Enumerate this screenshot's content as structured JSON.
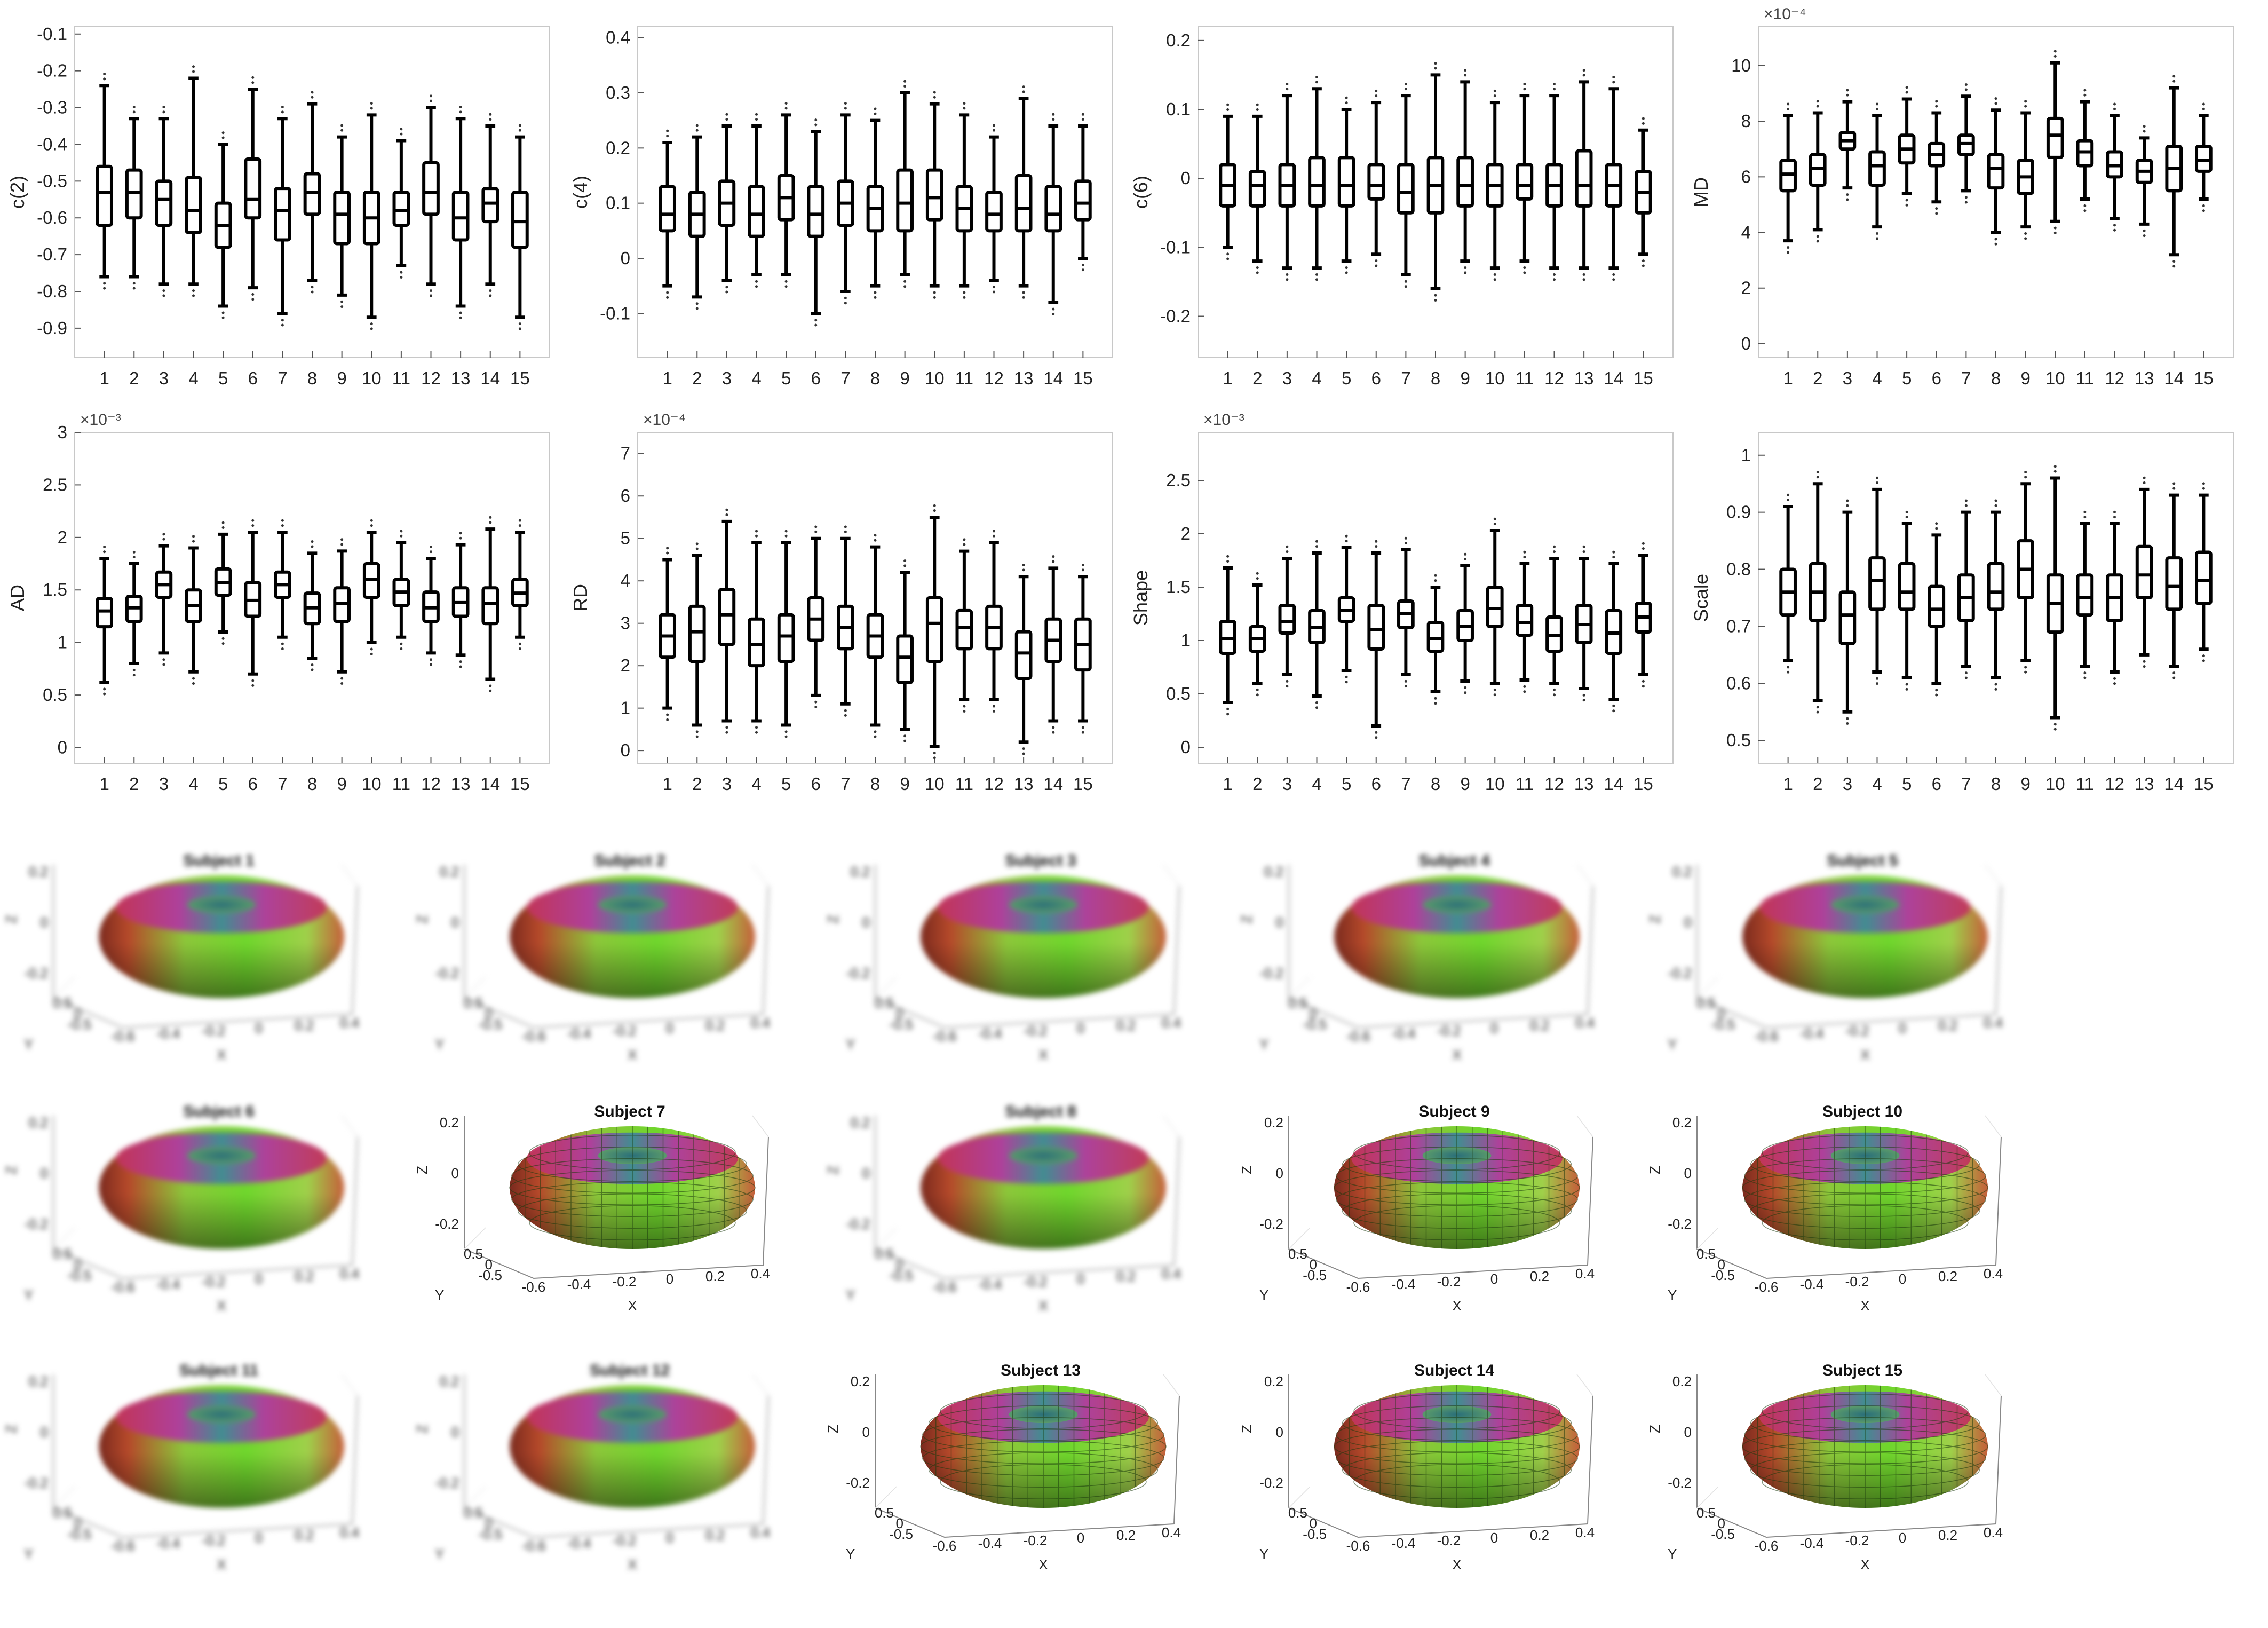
{
  "chart_data": [
    {
      "type": "box",
      "ylabel": "c(2)",
      "ylim": [
        -0.98,
        -0.08
      ],
      "yticks": [
        -0.1,
        -0.2,
        -0.3,
        -0.4,
        -0.5,
        -0.6,
        -0.7,
        -0.8,
        -0.9
      ],
      "yexponent": "",
      "categories": [
        "1",
        "2",
        "3",
        "4",
        "5",
        "6",
        "7",
        "8",
        "9",
        "10",
        "11",
        "12",
        "13",
        "14",
        "15"
      ],
      "medians": [
        -0.53,
        -0.53,
        -0.55,
        -0.58,
        -0.62,
        -0.55,
        -0.58,
        -0.53,
        -0.59,
        -0.6,
        -0.58,
        -0.53,
        -0.6,
        -0.56,
        -0.61
      ],
      "q1": [
        -0.62,
        -0.6,
        -0.62,
        -0.64,
        -0.68,
        -0.6,
        -0.66,
        -0.59,
        -0.67,
        -0.67,
        -0.62,
        -0.59,
        -0.66,
        -0.61,
        -0.68
      ],
      "q3": [
        -0.46,
        -0.47,
        -0.5,
        -0.49,
        -0.56,
        -0.44,
        -0.52,
        -0.48,
        -0.53,
        -0.53,
        -0.53,
        -0.45,
        -0.53,
        -0.52,
        -0.53
      ],
      "whisker_low": [
        -0.76,
        -0.76,
        -0.78,
        -0.78,
        -0.84,
        -0.79,
        -0.86,
        -0.77,
        -0.81,
        -0.87,
        -0.73,
        -0.78,
        -0.84,
        -0.78,
        -0.87
      ],
      "whisker_high": [
        -0.24,
        -0.33,
        -0.33,
        -0.22,
        -0.4,
        -0.25,
        -0.33,
        -0.29,
        -0.38,
        -0.32,
        -0.39,
        -0.3,
        -0.33,
        -0.35,
        -0.38
      ]
    },
    {
      "type": "box",
      "ylabel": "c(4)",
      "ylim": [
        -0.18,
        0.42
      ],
      "yticks": [
        0.4,
        0.3,
        0.2,
        0.1,
        0,
        -0.1
      ],
      "yexponent": "",
      "categories": [
        "1",
        "2",
        "3",
        "4",
        "5",
        "6",
        "7",
        "8",
        "9",
        "10",
        "11",
        "12",
        "13",
        "14",
        "15"
      ],
      "medians": [
        0.08,
        0.08,
        0.1,
        0.08,
        0.11,
        0.08,
        0.1,
        0.09,
        0.1,
        0.11,
        0.09,
        0.08,
        0.09,
        0.08,
        0.1
      ],
      "q1": [
        0.05,
        0.04,
        0.06,
        0.04,
        0.07,
        0.04,
        0.06,
        0.05,
        0.05,
        0.07,
        0.05,
        0.05,
        0.05,
        0.05,
        0.07
      ],
      "q3": [
        0.13,
        0.12,
        0.14,
        0.13,
        0.15,
        0.13,
        0.14,
        0.13,
        0.16,
        0.16,
        0.13,
        0.12,
        0.15,
        0.13,
        0.14
      ],
      "whisker_low": [
        -0.05,
        -0.07,
        -0.04,
        -0.03,
        -0.03,
        -0.1,
        -0.06,
        -0.05,
        -0.03,
        -0.05,
        -0.05,
        -0.04,
        -0.05,
        -0.08,
        0
      ],
      "whisker_high": [
        0.21,
        0.22,
        0.24,
        0.24,
        0.26,
        0.23,
        0.26,
        0.25,
        0.3,
        0.28,
        0.26,
        0.22,
        0.29,
        0.24,
        0.24
      ]
    },
    {
      "type": "box",
      "ylabel": "c(6)",
      "ylim": [
        -0.26,
        0.22
      ],
      "yticks": [
        0.2,
        0.1,
        0,
        -0.1,
        -0.2
      ],
      "yexponent": "",
      "categories": [
        "1",
        "2",
        "3",
        "4",
        "5",
        "6",
        "7",
        "8",
        "9",
        "10",
        "11",
        "12",
        "13",
        "14",
        "15"
      ],
      "medians": [
        -0.01,
        -0.01,
        -0.01,
        -0.01,
        -0.01,
        -0.01,
        -0.02,
        -0.01,
        -0.01,
        -0.01,
        -0.01,
        -0.01,
        -0.01,
        -0.01,
        -0.02
      ],
      "q1": [
        -0.04,
        -0.04,
        -0.04,
        -0.04,
        -0.04,
        -0.03,
        -0.05,
        -0.05,
        -0.04,
        -0.04,
        -0.03,
        -0.04,
        -0.04,
        -0.04,
        -0.05
      ],
      "q3": [
        0.02,
        0.01,
        0.02,
        0.03,
        0.03,
        0.02,
        0.02,
        0.03,
        0.03,
        0.02,
        0.02,
        0.02,
        0.04,
        0.02,
        0.01
      ],
      "whisker_low": [
        -0.1,
        -0.12,
        -0.13,
        -0.13,
        -0.12,
        -0.11,
        -0.14,
        -0.16,
        -0.12,
        -0.13,
        -0.12,
        -0.13,
        -0.13,
        -0.13,
        -0.11
      ],
      "whisker_high": [
        0.09,
        0.09,
        0.12,
        0.13,
        0.1,
        0.11,
        0.12,
        0.15,
        0.14,
        0.11,
        0.12,
        0.12,
        0.14,
        0.13,
        0.07
      ]
    },
    {
      "type": "box",
      "ylabel": "MD",
      "ylim": [
        -0.5,
        11.4
      ],
      "yticks": [
        10,
        8,
        6,
        4,
        2,
        0
      ],
      "yexponent": "×10⁻⁴",
      "categories": [
        "1",
        "2",
        "3",
        "4",
        "5",
        "6",
        "7",
        "8",
        "9",
        "10",
        "11",
        "12",
        "13",
        "14",
        "15"
      ],
      "medians": [
        6.1,
        6.3,
        7.3,
        6.4,
        7,
        6.8,
        7.2,
        6.3,
        6,
        7.5,
        6.9,
        6.4,
        6.2,
        6.3,
        6.6
      ],
      "q1": [
        5.5,
        5.7,
        7,
        5.7,
        6.5,
        6.4,
        6.8,
        5.6,
        5.4,
        6.7,
        6.4,
        6,
        5.8,
        5.5,
        6.2
      ],
      "q3": [
        6.6,
        6.8,
        7.6,
        6.9,
        7.5,
        7.2,
        7.5,
        6.8,
        6.6,
        8.1,
        7.3,
        6.9,
        6.6,
        7.1,
        7.1
      ],
      "whisker_low": [
        3.7,
        4.1,
        5.6,
        4.2,
        5.4,
        5.1,
        5.5,
        4,
        4.2,
        4.4,
        5.2,
        4.5,
        4.3,
        3.2,
        5.2
      ],
      "whisker_high": [
        8.2,
        8.3,
        8.7,
        8.2,
        8.8,
        8.3,
        8.9,
        8.4,
        8.3,
        10.1,
        8.7,
        8.2,
        7.4,
        9.2,
        8.2
      ]
    },
    {
      "type": "box",
      "ylabel": "AD",
      "ylim": [
        -0.15,
        3.0
      ],
      "yticks": [
        3,
        2.5,
        2,
        1.5,
        1,
        0.5,
        0
      ],
      "yexponent": "×10⁻³",
      "categories": [
        "1",
        "2",
        "3",
        "4",
        "5",
        "6",
        "7",
        "8",
        "9",
        "10",
        "11",
        "12",
        "13",
        "14",
        "15"
      ],
      "medians": [
        1.3,
        1.33,
        1.55,
        1.35,
        1.57,
        1.4,
        1.55,
        1.33,
        1.37,
        1.6,
        1.48,
        1.33,
        1.38,
        1.37,
        1.47
      ],
      "q1": [
        1.15,
        1.2,
        1.43,
        1.2,
        1.45,
        1.25,
        1.43,
        1.18,
        1.2,
        1.43,
        1.35,
        1.2,
        1.25,
        1.18,
        1.35
      ],
      "q3": [
        1.42,
        1.44,
        1.67,
        1.5,
        1.7,
        1.57,
        1.67,
        1.47,
        1.52,
        1.75,
        1.6,
        1.48,
        1.52,
        1.52,
        1.6
      ],
      "whisker_low": [
        0.62,
        0.8,
        0.9,
        0.72,
        1.1,
        0.7,
        1.05,
        0.85,
        0.72,
        1,
        1.05,
        0.9,
        0.88,
        0.65,
        1.05
      ],
      "whisker_high": [
        1.8,
        1.75,
        1.92,
        1.9,
        2.03,
        2.05,
        2.05,
        1.85,
        1.87,
        2.05,
        1.95,
        1.8,
        1.93,
        2.08,
        2.05
      ]
    },
    {
      "type": "box",
      "ylabel": "RD",
      "ylim": [
        -0.3,
        7.5
      ],
      "yticks": [
        7,
        6,
        5,
        4,
        3,
        2,
        1,
        0
      ],
      "yexponent": "×10⁻⁴",
      "categories": [
        "1",
        "2",
        "3",
        "4",
        "5",
        "6",
        "7",
        "8",
        "9",
        "10",
        "11",
        "12",
        "13",
        "14",
        "15"
      ],
      "medians": [
        2.7,
        2.8,
        3.2,
        2.5,
        2.7,
        3.1,
        2.9,
        2.7,
        2.2,
        3,
        2.9,
        2.9,
        2.3,
        2.6,
        2.5
      ],
      "q1": [
        2.2,
        2.1,
        2.5,
        2,
        2.1,
        2.6,
        2.4,
        2.2,
        1.6,
        2.1,
        2.4,
        2.4,
        1.7,
        2.1,
        1.9
      ],
      "q3": [
        3.2,
        3.4,
        3.8,
        3.1,
        3.2,
        3.6,
        3.4,
        3.2,
        2.7,
        3.6,
        3.3,
        3.4,
        2.8,
        3.1,
        3.1
      ],
      "whisker_low": [
        1,
        0.6,
        0.7,
        0.7,
        0.6,
        1.3,
        1.1,
        0.6,
        0.5,
        0.1,
        1.2,
        1.2,
        0.2,
        0.7,
        0.7
      ],
      "whisker_high": [
        4.5,
        4.6,
        5.4,
        4.9,
        4.9,
        5,
        5,
        4.8,
        4.2,
        5.5,
        4.7,
        4.9,
        4.1,
        4.3,
        4.1
      ]
    },
    {
      "type": "box",
      "ylabel": "Shape",
      "ylim": [
        -0.15,
        2.95
      ],
      "yticks": [
        2.5,
        2,
        1.5,
        1,
        0.5,
        0
      ],
      "yexponent": "×10⁻³",
      "categories": [
        "1",
        "2",
        "3",
        "4",
        "5",
        "6",
        "7",
        "8",
        "9",
        "10",
        "11",
        "12",
        "13",
        "14",
        "15"
      ],
      "medians": [
        1.02,
        1.02,
        1.18,
        1.12,
        1.28,
        1.1,
        1.25,
        1.02,
        1.13,
        1.3,
        1.17,
        1.05,
        1.15,
        1.07,
        1.22
      ],
      "q1": [
        0.88,
        0.9,
        1.07,
        0.98,
        1.18,
        0.92,
        1.12,
        0.9,
        1,
        1.13,
        1.05,
        0.9,
        0.98,
        0.88,
        1.08
      ],
      "q3": [
        1.18,
        1.13,
        1.33,
        1.28,
        1.4,
        1.33,
        1.37,
        1.17,
        1.28,
        1.5,
        1.33,
        1.22,
        1.33,
        1.28,
        1.35
      ],
      "whisker_low": [
        0.42,
        0.6,
        0.68,
        0.48,
        0.72,
        0.2,
        0.68,
        0.52,
        0.62,
        0.6,
        0.63,
        0.6,
        0.55,
        0.45,
        0.68
      ],
      "whisker_high": [
        1.68,
        1.52,
        1.77,
        1.82,
        1.87,
        1.82,
        1.85,
        1.5,
        1.7,
        2.03,
        1.72,
        1.77,
        1.77,
        1.72,
        1.8
      ]
    },
    {
      "type": "box",
      "ylabel": "Scale",
      "ylim": [
        0.46,
        1.04
      ],
      "yticks": [
        1,
        0.9,
        0.8,
        0.7,
        0.6,
        0.5
      ],
      "yexponent": "",
      "categories": [
        "1",
        "2",
        "3",
        "4",
        "5",
        "6",
        "7",
        "8",
        "9",
        "10",
        "11",
        "12",
        "13",
        "14",
        "15"
      ],
      "medians": [
        0.76,
        0.76,
        0.72,
        0.78,
        0.76,
        0.73,
        0.75,
        0.76,
        0.8,
        0.74,
        0.75,
        0.75,
        0.79,
        0.77,
        0.78
      ],
      "q1": [
        0.72,
        0.71,
        0.67,
        0.73,
        0.73,
        0.7,
        0.71,
        0.73,
        0.75,
        0.69,
        0.72,
        0.71,
        0.75,
        0.73,
        0.74
      ],
      "q3": [
        0.8,
        0.81,
        0.76,
        0.82,
        0.81,
        0.77,
        0.79,
        0.81,
        0.85,
        0.79,
        0.79,
        0.79,
        0.84,
        0.82,
        0.83
      ],
      "whisker_low": [
        0.64,
        0.57,
        0.55,
        0.62,
        0.61,
        0.6,
        0.63,
        0.61,
        0.64,
        0.54,
        0.63,
        0.62,
        0.65,
        0.63,
        0.66
      ],
      "whisker_high": [
        0.91,
        0.95,
        0.9,
        0.94,
        0.88,
        0.86,
        0.9,
        0.9,
        0.95,
        0.96,
        0.88,
        0.88,
        0.94,
        0.93,
        0.93
      ]
    }
  ],
  "subjects": [
    {
      "title": "Subject 1",
      "sharp": false
    },
    {
      "title": "Subject 2",
      "sharp": false
    },
    {
      "title": "Subject 3",
      "sharp": false
    },
    {
      "title": "Subject 4",
      "sharp": false
    },
    {
      "title": "Subject 5",
      "sharp": false
    },
    {
      "title": "Subject 6",
      "sharp": false
    },
    {
      "title": "Subject 7",
      "sharp": true
    },
    {
      "title": "Subject 8",
      "sharp": false
    },
    {
      "title": "Subject 9",
      "sharp": true
    },
    {
      "title": "Subject 10",
      "sharp": true
    },
    {
      "title": "Subject 11",
      "sharp": false
    },
    {
      "title": "Subject 12",
      "sharp": false
    },
    {
      "title": "Subject 13",
      "sharp": true
    },
    {
      "title": "Subject 14",
      "sharp": true
    },
    {
      "title": "Subject 15",
      "sharp": true
    }
  ],
  "surface_axes": {
    "x_label": "X",
    "y_label": "Y",
    "z_label": "Z",
    "x_ticks": [
      "-0.6",
      "-0.4",
      "-0.2",
      "0",
      "0.2",
      "0.4"
    ],
    "y_ticks": [
      "0.5",
      "0",
      "-0.5"
    ],
    "z_ticks": [
      "0.2",
      "0",
      "-0.2"
    ]
  },
  "colors": {
    "box_stroke": "#000000",
    "torus_green": "#6fd62c",
    "torus_red": "#b8322d",
    "torus_magenta": "#b03aa0",
    "torus_teal": "#3e8a96"
  }
}
